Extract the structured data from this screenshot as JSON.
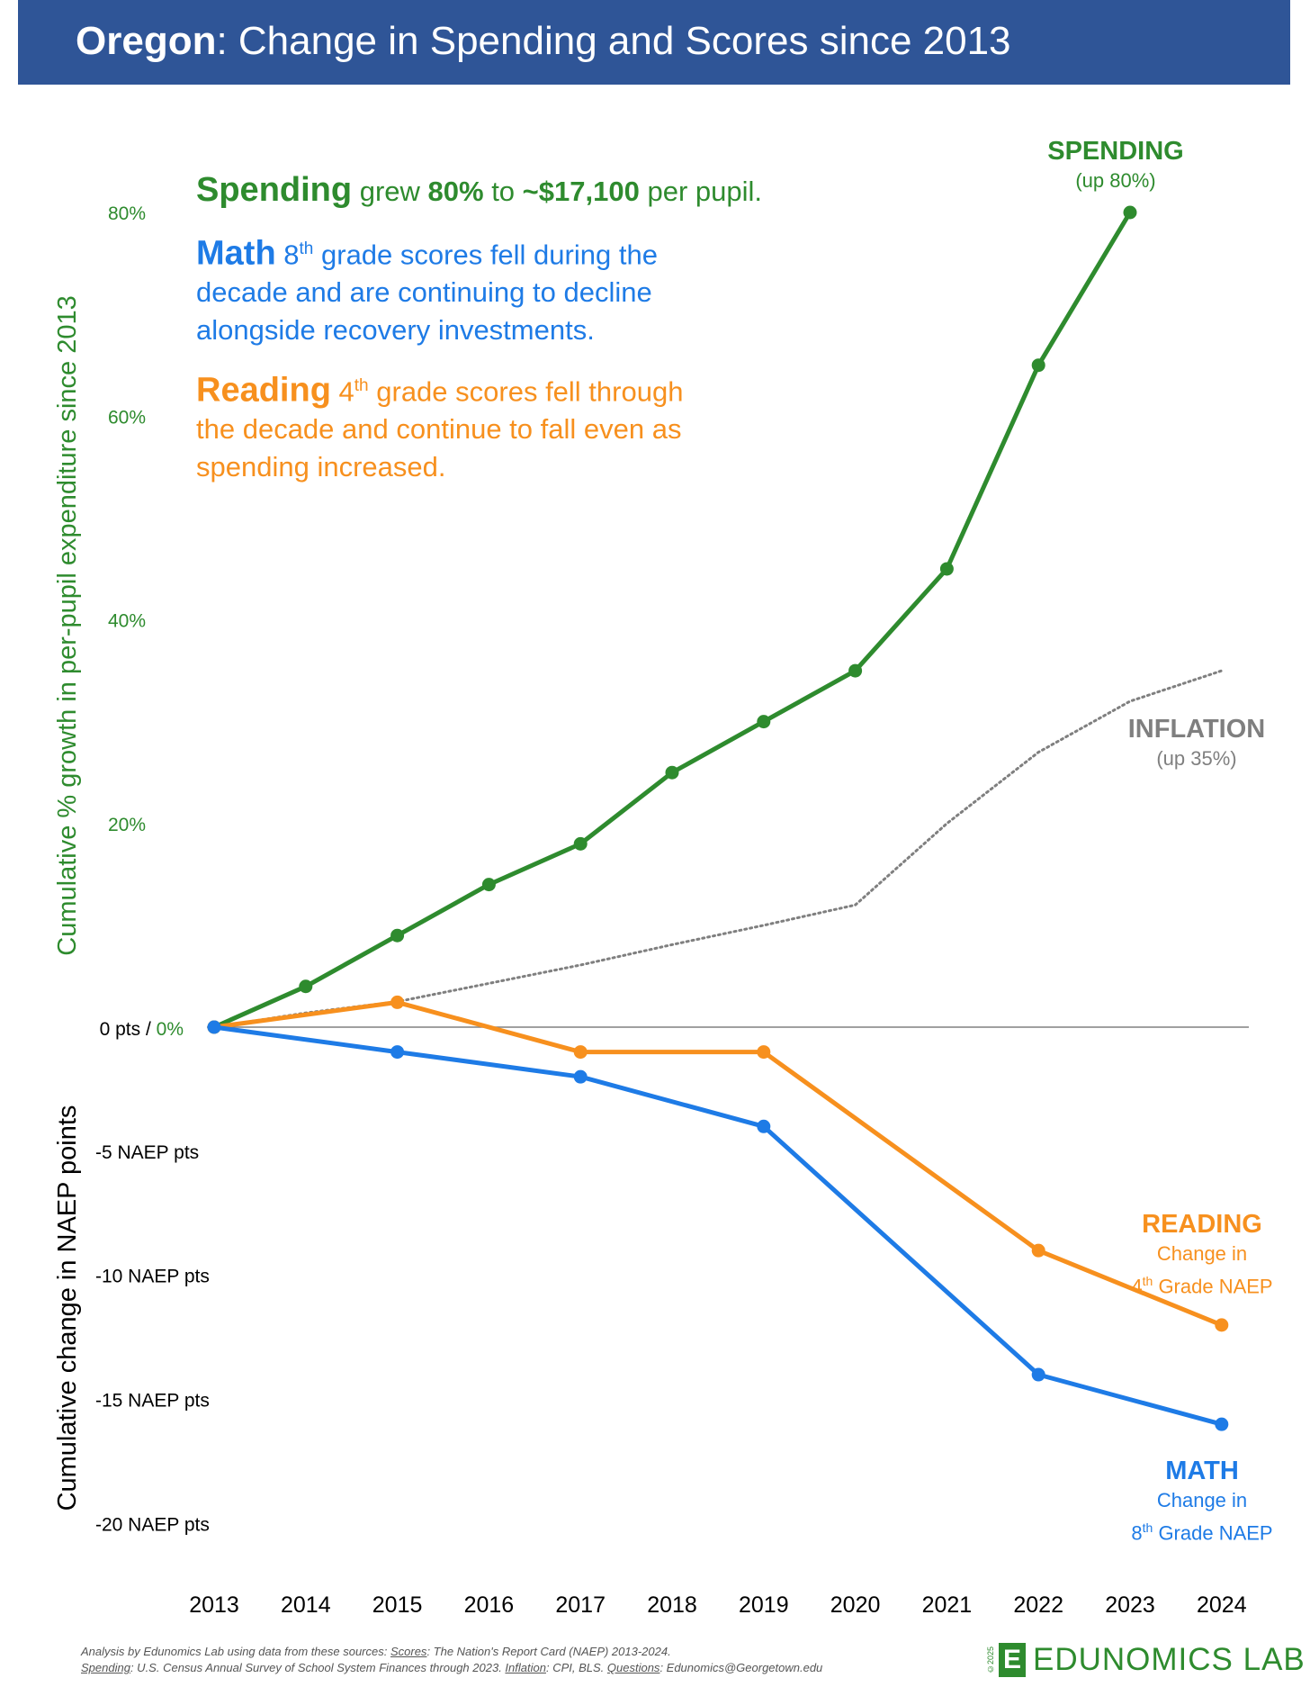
{
  "header": {
    "title_bold": "Oregon",
    "title_rest": ": Change in Spending and Scores since 2013"
  },
  "annotations": {
    "spending": {
      "head": "Spending",
      "t1": " grew ",
      "pct": "80%",
      "t2": " to ",
      "amount": "~$17,100",
      "t3": " per pupil."
    },
    "math": {
      "head": "Math",
      "grade": "8",
      "sup": "th",
      "t1": " grade scores fell during the",
      "t2": "decade and are continuing to decline",
      "t3": "alongside recovery investments."
    },
    "reading": {
      "head": "Reading",
      "grade": "4",
      "sup": "th",
      "t1": " grade scores fell through",
      "t2": "the decade and continue to fall even as",
      "t3": "spending increased."
    }
  },
  "labels": {
    "spending": {
      "head": "SPENDING",
      "sub": "(up 80%)"
    },
    "inflation": {
      "head": "INFLATION",
      "sub": "(up 35%)"
    },
    "reading": {
      "head": "READING",
      "sub1": "Change in",
      "grade": "4",
      "sup": "th",
      "sub2": " Grade NAEP"
    },
    "math": {
      "head": "MATH",
      "sub1": "Change in",
      "grade": "8",
      "sup": "th",
      "sub2": " Grade NAEP"
    }
  },
  "footer": {
    "line1_a": "Analysis by Edunomics Lab using data from these sources: ",
    "scores_label": "Scores",
    "line1_b": ": The Nation's Report Card (NAEP) 2013-2024.",
    "spending_label": "Spending",
    "line2_a": ": U.S. Census Annual Survey of School System Finances through 2023. ",
    "inflation_label": "Inflation",
    "line2_b": ": CPI, BLS. ",
    "questions_label": "Questions",
    "line2_c": ": Edunomics@Georgetown.edu"
  },
  "logo": {
    "copyright": "©2025",
    "mark": "E",
    "text": "EDUNOMICS LAB"
  },
  "chart_data": {
    "type": "line",
    "x": [
      2013,
      2014,
      2015,
      2016,
      2017,
      2018,
      2019,
      2020,
      2021,
      2022,
      2023,
      2024
    ],
    "zero_label_pts": "0 pts / ",
    "zero_label_pct": "0%",
    "y_left_upper": {
      "label": "Cumulative % growth in per-pupil expenditure since 2013",
      "ticks": [
        {
          "value": 20,
          "label": "20%"
        },
        {
          "value": 40,
          "label": "40%"
        },
        {
          "value": 60,
          "label": "60%"
        },
        {
          "value": 80,
          "label": "80%"
        }
      ],
      "range": [
        0,
        84
      ]
    },
    "y_left_lower": {
      "label": "Cumulative change in NAEP points",
      "ticks": [
        {
          "value": -5,
          "label": "-5 NAEP pts"
        },
        {
          "value": -10,
          "label": "-10 NAEP pts"
        },
        {
          "value": -15,
          "label": "-15 NAEP pts"
        },
        {
          "value": -20,
          "label": "-20 NAEP pts"
        }
      ],
      "range": [
        -22,
        0
      ]
    },
    "series": [
      {
        "name": "SPENDING",
        "axis": "percent",
        "color": "#2e8b2e",
        "style": "solid-markers",
        "points": [
          [
            2013,
            0
          ],
          [
            2014,
            4
          ],
          [
            2015,
            9
          ],
          [
            2016,
            14
          ],
          [
            2017,
            18
          ],
          [
            2018,
            25
          ],
          [
            2019,
            30
          ],
          [
            2020,
            35
          ],
          [
            2021,
            45
          ],
          [
            2022,
            65
          ],
          [
            2023,
            80
          ]
        ]
      },
      {
        "name": "INFLATION",
        "axis": "percent",
        "color": "#7f7f7f",
        "style": "dotted",
        "points": [
          [
            2013,
            0
          ],
          [
            2014,
            1.4
          ],
          [
            2015,
            2.5
          ],
          [
            2016,
            4.3
          ],
          [
            2017,
            6.1
          ],
          [
            2018,
            8.1
          ],
          [
            2019,
            10.0
          ],
          [
            2020,
            12.0
          ],
          [
            2021,
            20.0
          ],
          [
            2022,
            27.0
          ],
          [
            2023,
            32.0
          ],
          [
            2024,
            35.0
          ]
        ]
      },
      {
        "name": "READING",
        "axis": "naep",
        "color": "#f7901e",
        "style": "solid-markers",
        "points": [
          [
            2013,
            0
          ],
          [
            2015,
            1
          ],
          [
            2017,
            -1
          ],
          [
            2019,
            -1
          ],
          [
            2022,
            -9
          ],
          [
            2024,
            -12
          ]
        ]
      },
      {
        "name": "MATH",
        "axis": "naep",
        "color": "#1e7be6",
        "style": "solid-markers",
        "points": [
          [
            2013,
            0
          ],
          [
            2015,
            -1
          ],
          [
            2017,
            -2
          ],
          [
            2019,
            -4
          ],
          [
            2022,
            -14
          ],
          [
            2024,
            -16
          ]
        ]
      }
    ]
  }
}
